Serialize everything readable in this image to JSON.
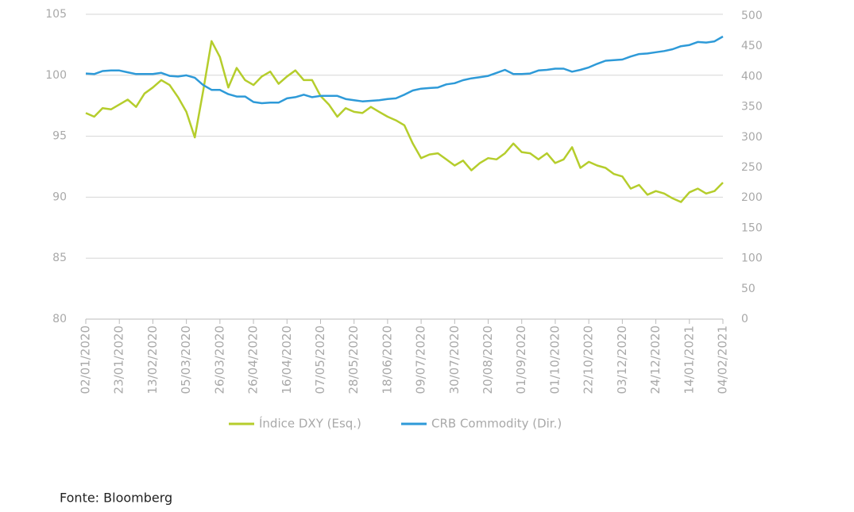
{
  "chart_data": {
    "type": "line",
    "categories": [
      "02/01/2020",
      null,
      null,
      null,
      "23/01/2020",
      null,
      null,
      null,
      "13/02/2020",
      null,
      null,
      null,
      "05/03/2020",
      null,
      null,
      null,
      "26/03/2020",
      null,
      null,
      null,
      "26/04/2020",
      null,
      null,
      null,
      "16/04/2020",
      null,
      null,
      null,
      "07/05/2020",
      null,
      null,
      null,
      "28/05/2020",
      null,
      null,
      null,
      "18/06/2020",
      null,
      null,
      null,
      "09/07/2020",
      null,
      null,
      null,
      "30/07/2020",
      null,
      null,
      null,
      "20/08/2020",
      null,
      null,
      null,
      "01/09/2020",
      null,
      null,
      null,
      "01/10/2020",
      null,
      null,
      null,
      "22/10/2020",
      null,
      null,
      null,
      "03/12/2020",
      null,
      null,
      null,
      "24/12/2020",
      null,
      null,
      null,
      "14/01/2021",
      null,
      null,
      null,
      "04/02/2021"
    ],
    "series": [
      {
        "name": "Índice DXY (Esq.)",
        "color": "#b5cd2c",
        "axis": "y",
        "values": [
          96.9,
          96.6,
          97.3,
          97.2,
          97.6,
          98.0,
          97.4,
          98.5,
          99.0,
          99.6,
          99.2,
          98.2,
          97.0,
          94.9,
          98.7,
          102.8,
          101.5,
          99.0,
          100.6,
          99.6,
          99.2,
          99.9,
          100.3,
          99.3,
          99.9,
          100.4,
          99.6,
          99.6,
          98.3,
          97.6,
          96.6,
          97.3,
          97.0,
          96.9,
          97.4,
          97.0,
          96.6,
          96.3,
          95.9,
          94.4,
          93.2,
          93.5,
          93.6,
          93.1,
          92.6,
          93.0,
          92.2,
          92.8,
          93.2,
          93.1,
          93.6,
          94.4,
          93.7,
          93.6,
          93.1,
          93.6,
          92.8,
          93.1,
          94.1,
          92.4,
          92.9,
          92.6,
          92.4,
          91.9,
          91.7,
          90.7,
          91.0,
          90.2,
          90.5,
          90.3,
          89.9,
          89.6,
          90.4,
          90.7,
          90.3,
          90.5,
          91.2
        ]
      },
      {
        "name": "CRB Commodity (Dir.)",
        "color": "#2e9ad8",
        "axis": "y2",
        "values": [
          405,
          404,
          409,
          410,
          410,
          407,
          404,
          404,
          404,
          406,
          401,
          400,
          402,
          398,
          386,
          378,
          378,
          371,
          367,
          367,
          358,
          356,
          357,
          357,
          364,
          366,
          370,
          366,
          368,
          368,
          368,
          363,
          361,
          359,
          360,
          361,
          363,
          364,
          370,
          377,
          380,
          381,
          382,
          387,
          389,
          394,
          397,
          399,
          401,
          406,
          411,
          404,
          404,
          405,
          410,
          411,
          413,
          413,
          408,
          411,
          415,
          421,
          426,
          427,
          428,
          433,
          437,
          438,
          440,
          442,
          445,
          450,
          452,
          457,
          456,
          458,
          466
        ]
      }
    ],
    "ylim": [
      80,
      105
    ],
    "yticks": [
      80,
      85,
      90,
      95,
      100,
      105
    ],
    "y2lim": [
      0,
      500
    ],
    "y2ticks": [
      0,
      50,
      100,
      150,
      200,
      250,
      300,
      350,
      400,
      450,
      500
    ],
    "grid": true,
    "legend": "bottom",
    "source": "Fonte: Bloomberg"
  }
}
